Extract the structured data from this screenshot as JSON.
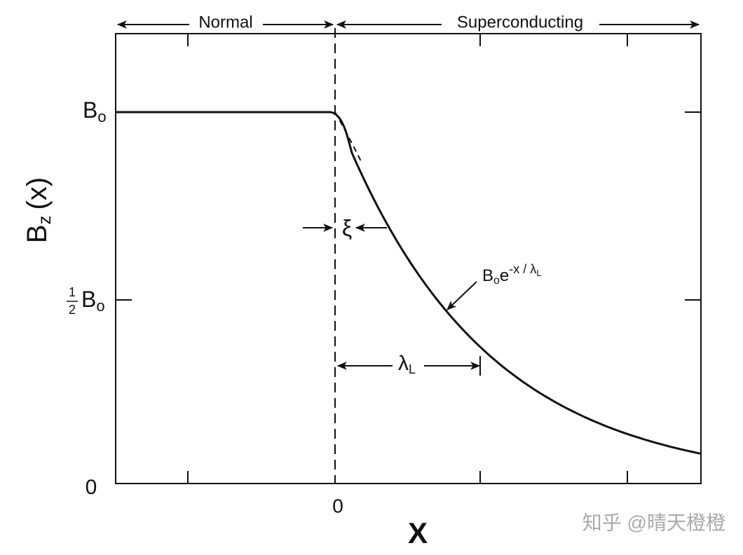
{
  "top_labels": {
    "left": "Normal",
    "right": "Superconducting"
  },
  "y_axis": {
    "label": {
      "main": "B",
      "sub": "z",
      "rest": "(x)"
    },
    "ticks": [
      {
        "main": "B",
        "sub": "o"
      },
      {
        "num": "1",
        "den": "2",
        "main": "B",
        "sub": "o"
      },
      {
        "main": "0"
      }
    ]
  },
  "x_axis": {
    "label": "X",
    "tick": "0"
  },
  "annotations": {
    "xi": "ξ",
    "lambda": {
      "main": "λ",
      "sub": "L"
    },
    "curve": {
      "main": "B",
      "sub": "o",
      "e": "e",
      "exp": "-x / λ",
      "exp_sub": "L"
    }
  },
  "watermark": "知乎 @晴天橙橙"
}
